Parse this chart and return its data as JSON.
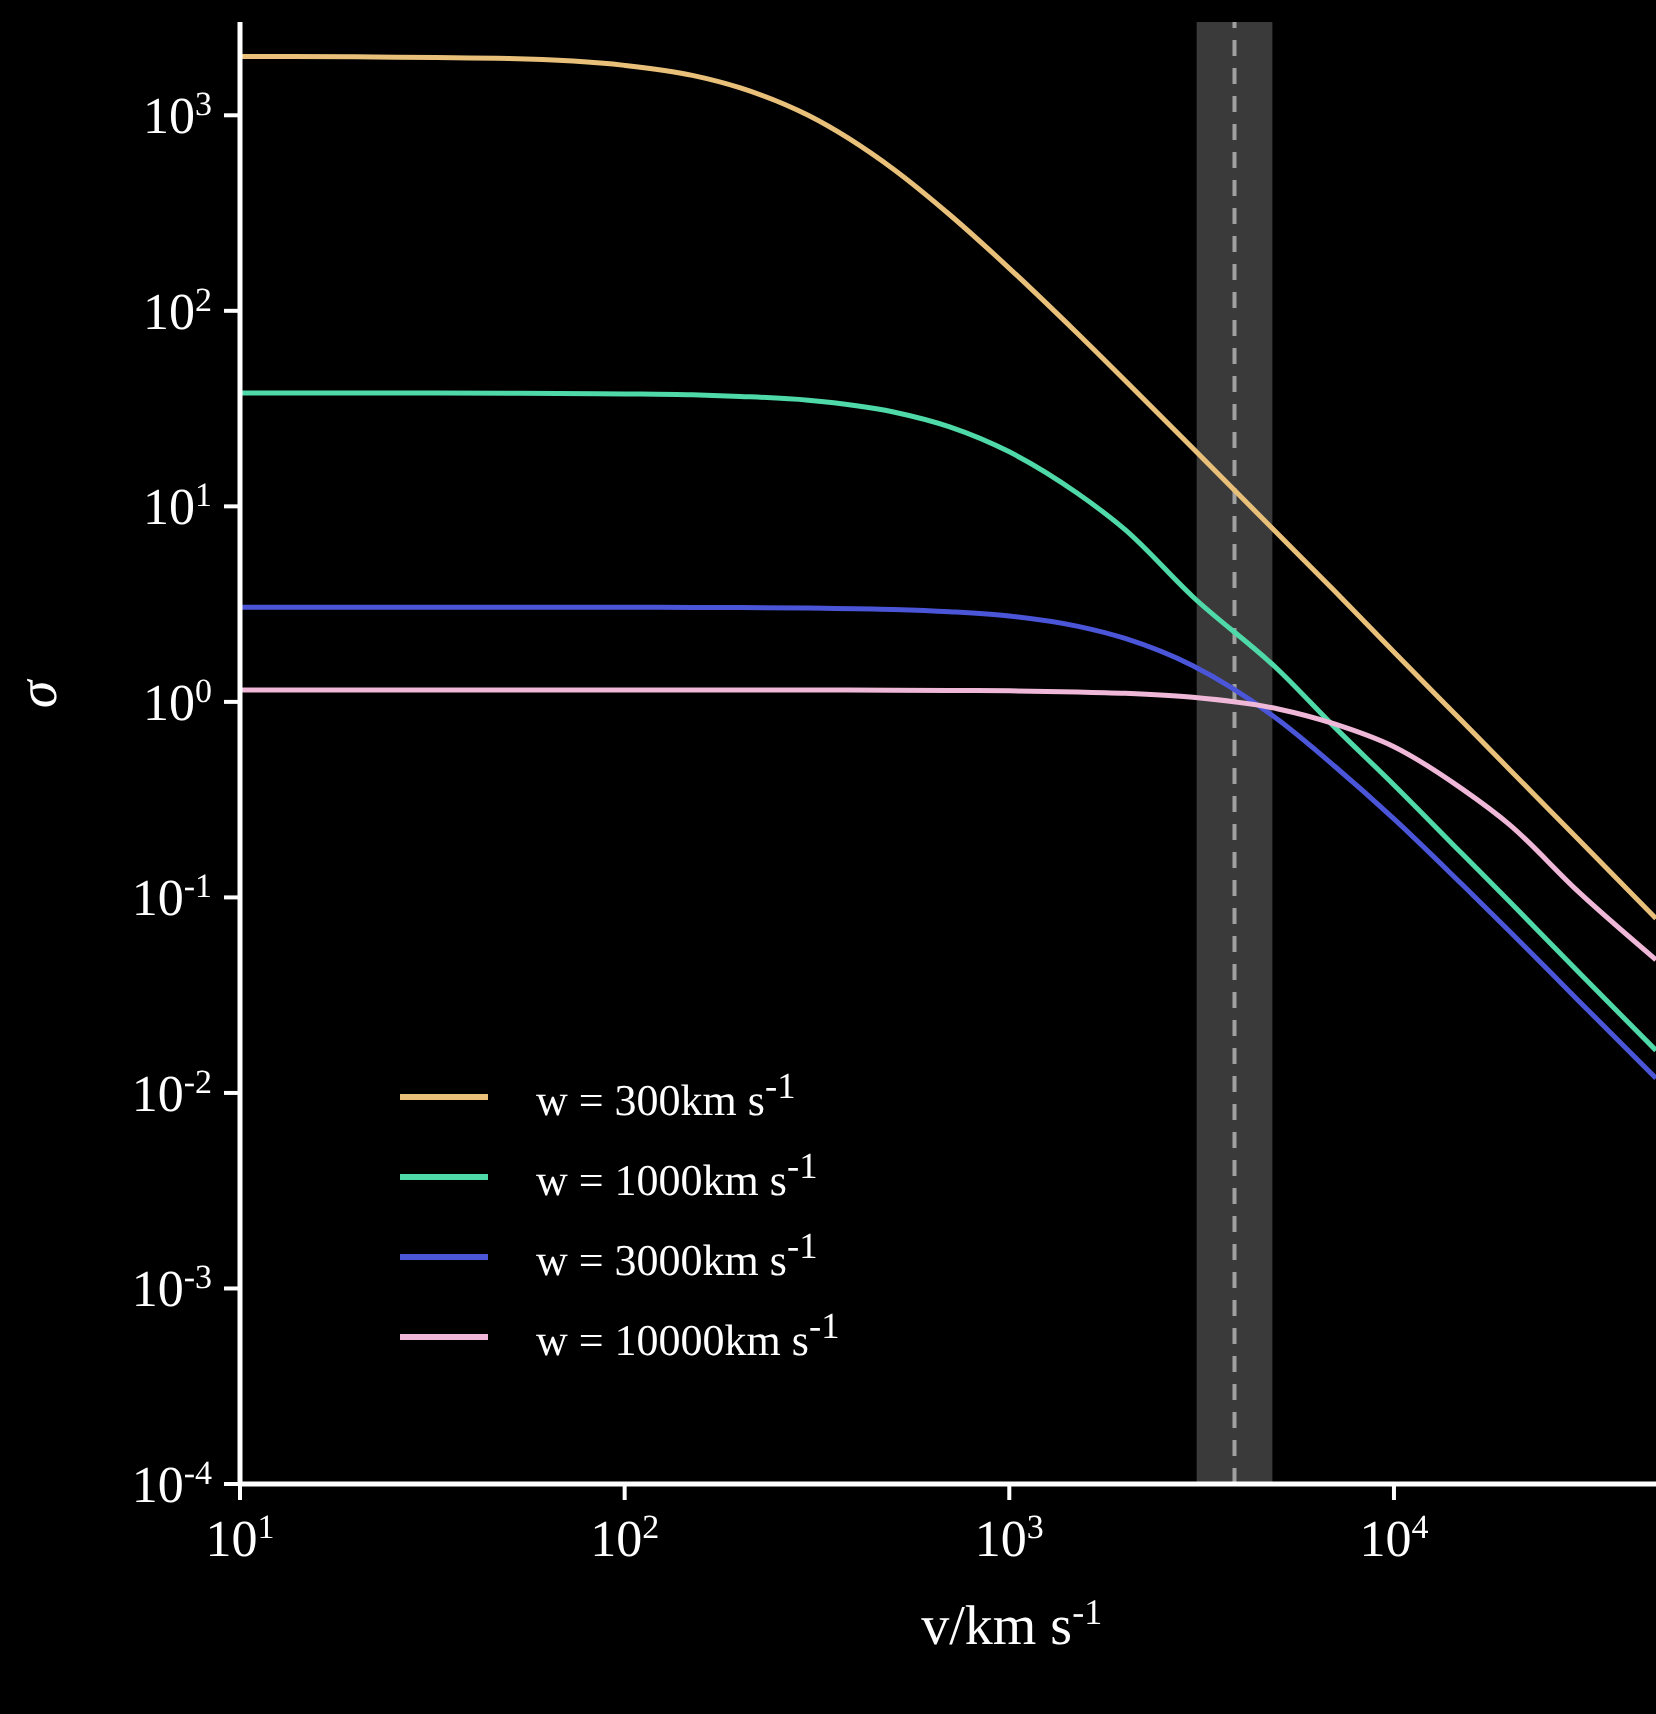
{
  "chart_data": {
    "type": "line",
    "xlabel": "v/km s$^{-1}$",
    "ylabel": "σ",
    "log": "xy",
    "x": [
      10,
      20,
      50,
      100,
      150,
      200,
      300,
      500,
      700,
      1000,
      1500,
      2000,
      3000,
      5000,
      7000,
      10000,
      15000,
      20000,
      30000,
      48000
    ],
    "series": [
      {
        "name": "w = 300km s$^{-1}$",
        "color": "#e8c07a",
        "values": [
          2000,
          1990,
          1950,
          1800,
          1600,
          1380,
          1000,
          530,
          310,
          165,
          77,
          44,
          19.8,
          7.2,
          3.7,
          1.8,
          0.8,
          0.45,
          0.2,
          0.078
        ]
      },
      {
        "name": "w = 1000km s$^{-1}$",
        "color": "#4fd8a8",
        "values": [
          38,
          38,
          37.9,
          37.6,
          37.2,
          36.5,
          34.9,
          30.4,
          25.5,
          19,
          11.7,
          7.6,
          3.45,
          1.46,
          0.745,
          0.376,
          0.168,
          0.095,
          0.042,
          0.0165
        ]
      },
      {
        "name": "w = 3000km s$^{-1}$",
        "color": "#4a55d8",
        "values": [
          3.05,
          3.05,
          3.05,
          3.05,
          3.04,
          3.04,
          3.02,
          2.97,
          2.89,
          2.75,
          2.44,
          2.11,
          1.53,
          0.81,
          0.47,
          0.252,
          0.117,
          0.067,
          0.03,
          0.0119
        ]
      },
      {
        "name": "w = 10000km s$^{-1}$",
        "color": "#f0b8d8",
        "values": [
          1.15,
          1.15,
          1.15,
          1.15,
          1.15,
          1.15,
          1.15,
          1.147,
          1.144,
          1.139,
          1.125,
          1.106,
          1.055,
          0.92,
          0.772,
          0.59,
          0.36,
          0.235,
          0.108,
          0.048
        ]
      }
    ],
    "xlim": [
      10,
      48000
    ],
    "xticks": [
      {
        "value": 10,
        "label": "10$^{1}$"
      },
      {
        "value": 100,
        "label": "10$^{2}$"
      },
      {
        "value": 1000,
        "label": "10$^{3}$"
      },
      {
        "value": 10000,
        "label": "10$^{4}$"
      }
    ],
    "ylim": [
      0.0001,
      3000
    ],
    "yticks": [
      {
        "value": 0.0001,
        "label": "10$^{-4}$"
      },
      {
        "value": 0.001,
        "label": "10$^{-3}$"
      },
      {
        "value": 0.01,
        "label": "10$^{-2}$"
      },
      {
        "value": 0.1,
        "label": "10$^{-1}$"
      },
      {
        "value": 1,
        "label": "10$^{0}$"
      },
      {
        "value": 10,
        "label": "10$^{1}$"
      },
      {
        "value": 100,
        "label": "10$^{2}$"
      },
      {
        "value": 1000,
        "label": "10$^{3}$"
      }
    ],
    "bands": [
      {
        "axis": "x",
        "from": 3070,
        "to": 4830,
        "color": "#3a3a3a"
      }
    ],
    "ref_lines": [
      {
        "axis": "x",
        "value": 3850,
        "color": "#a0a0a0",
        "line_style": "dashed"
      }
    ],
    "legend": "bottom left",
    "grid": false,
    "marker": "none",
    "line_style": "solid"
  }
}
